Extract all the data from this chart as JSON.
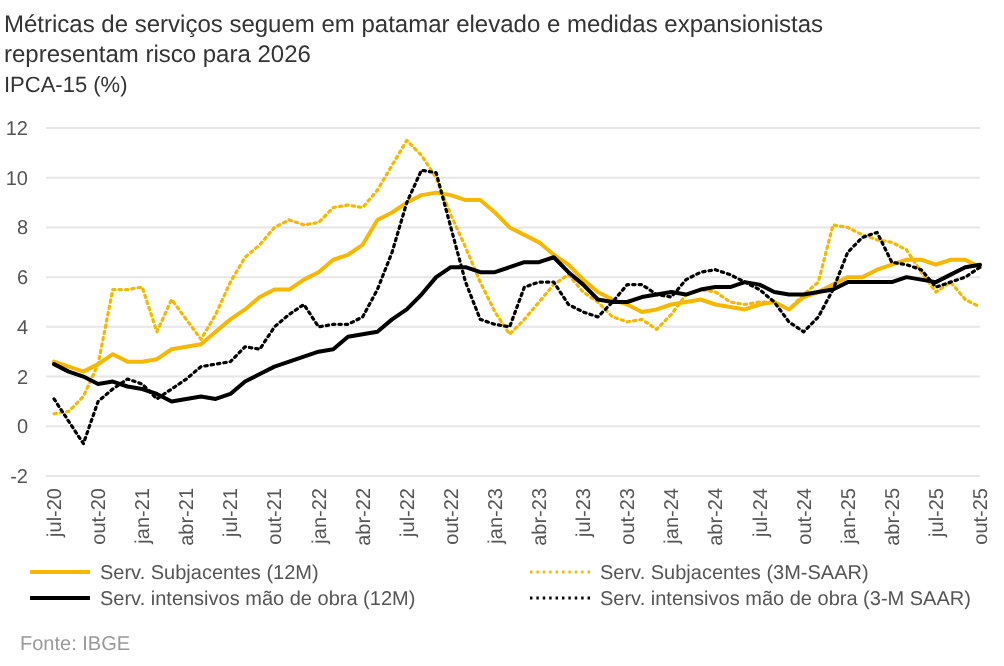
{
  "chart_data": {
    "type": "line",
    "title": "Métricas de serviços seguem em patamar elevado e medidas expansionistas representam risco para 2026",
    "subtitle": "IPCA-15 (%)",
    "categories": [
      "jul-20",
      null,
      null,
      "out-20",
      null,
      null,
      "jan-21",
      null,
      null,
      "abr-21",
      null,
      null,
      "jul-21",
      null,
      null,
      "out-21",
      null,
      null,
      "jan-22",
      null,
      null,
      "abr-22",
      null,
      null,
      "jul-22",
      null,
      null,
      "out-22",
      null,
      null,
      "jan-23",
      null,
      null,
      "abr-23",
      null,
      null,
      "jul-23",
      null,
      null,
      "out-23",
      null,
      null,
      "jan-24",
      null,
      null,
      "abr-24",
      null,
      null,
      "jul-24",
      null,
      null,
      "out-24",
      null,
      null,
      "jan-25",
      null,
      null,
      "abr-25",
      null,
      null,
      "jul-25",
      null,
      null,
      "out-25"
    ],
    "series": [
      {
        "name": "Serv. Subjacentes (12M)",
        "color": "#f5b800",
        "line_style": "solid",
        "values": [
          2.6,
          2.4,
          2.2,
          2.5,
          2.9,
          2.6,
          2.6,
          2.7,
          3.1,
          3.2,
          3.3,
          3.8,
          4.3,
          4.7,
          5.2,
          5.5,
          5.5,
          5.9,
          6.2,
          6.7,
          6.9,
          7.3,
          8.3,
          8.6,
          9.0,
          9.3,
          9.4,
          9.3,
          9.1,
          9.1,
          8.6,
          8.0,
          7.7,
          7.4,
          6.9,
          6.5,
          5.9,
          5.4,
          5.1,
          4.9,
          4.6,
          4.7,
          4.9,
          5.0,
          5.1,
          4.9,
          4.8,
          4.7,
          4.9,
          5.0,
          4.7,
          5.2,
          5.4,
          5.7,
          6.0,
          6.0,
          6.3,
          6.5,
          6.7,
          6.7,
          6.5,
          6.7,
          6.7,
          6.4
        ]
      },
      {
        "name": "Serv. Subjacentes (3M-SAAR)",
        "color": "#f5b800",
        "line_style": "dotted",
        "values": [
          0.5,
          0.6,
          1.2,
          2.5,
          5.5,
          5.5,
          5.6,
          3.8,
          5.1,
          4.3,
          3.5,
          4.5,
          5.8,
          6.8,
          7.3,
          8.0,
          8.3,
          8.1,
          8.2,
          8.8,
          8.9,
          8.8,
          9.5,
          10.5,
          11.5,
          10.9,
          10.0,
          8.5,
          7.2,
          5.8,
          4.6,
          3.7,
          4.3,
          5.0,
          5.7,
          6.1,
          5.4,
          5.0,
          4.4,
          4.2,
          4.3,
          3.9,
          4.5,
          5.3,
          5.5,
          5.4,
          5.0,
          4.9,
          5.0,
          5.0,
          4.7,
          5.3,
          5.8,
          8.1,
          8.0,
          7.7,
          7.5,
          7.4,
          7.1,
          6.2,
          5.4,
          5.8,
          5.1,
          4.8
        ]
      },
      {
        "name": "Serv. intensivos mão de obra (12M)",
        "color": "#000000",
        "line_style": "solid",
        "values": [
          2.5,
          2.2,
          2.0,
          1.7,
          1.8,
          1.6,
          1.5,
          1.3,
          1.0,
          1.1,
          1.2,
          1.1,
          1.3,
          1.8,
          2.1,
          2.4,
          2.6,
          2.8,
          3.0,
          3.1,
          3.6,
          3.7,
          3.8,
          4.3,
          4.7,
          5.3,
          6.0,
          6.4,
          6.4,
          6.2,
          6.2,
          6.4,
          6.6,
          6.6,
          6.8,
          6.2,
          5.7,
          5.1,
          5.0,
          5.0,
          5.2,
          5.3,
          5.4,
          5.3,
          5.5,
          5.6,
          5.6,
          5.8,
          5.7,
          5.4,
          5.3,
          5.3,
          5.4,
          5.5,
          5.8,
          5.8,
          5.8,
          5.8,
          6.0,
          5.9,
          5.8,
          6.1,
          6.4,
          6.5
        ]
      },
      {
        "name": "Serv. intensivos mão de obra (3-M SAAR)",
        "color": "#000000",
        "line_style": "dotted",
        "values": [
          1.1,
          0.2,
          -0.7,
          1.0,
          1.5,
          1.9,
          1.7,
          1.1,
          1.5,
          1.9,
          2.4,
          2.5,
          2.6,
          3.2,
          3.1,
          4.0,
          4.5,
          4.9,
          4.0,
          4.1,
          4.1,
          4.4,
          5.5,
          7.0,
          9.0,
          10.3,
          10.2,
          8.0,
          5.8,
          4.3,
          4.1,
          4.0,
          5.6,
          5.8,
          5.8,
          4.9,
          4.6,
          4.4,
          5.0,
          5.7,
          5.7,
          5.3,
          5.2,
          5.9,
          6.2,
          6.3,
          6.1,
          5.8,
          5.5,
          5.0,
          4.2,
          3.8,
          4.4,
          5.5,
          7.0,
          7.6,
          7.8,
          6.6,
          6.5,
          6.3,
          5.6,
          5.8,
          6.0,
          6.4
        ]
      }
    ],
    "ylim": [
      -2,
      12
    ],
    "yticks": [
      -2,
      0,
      2,
      4,
      6,
      8,
      10,
      12
    ],
    "grid": "y",
    "legend": "bottom",
    "marker": "none",
    "annotations": [
      "Fonte: IBGE"
    ]
  }
}
